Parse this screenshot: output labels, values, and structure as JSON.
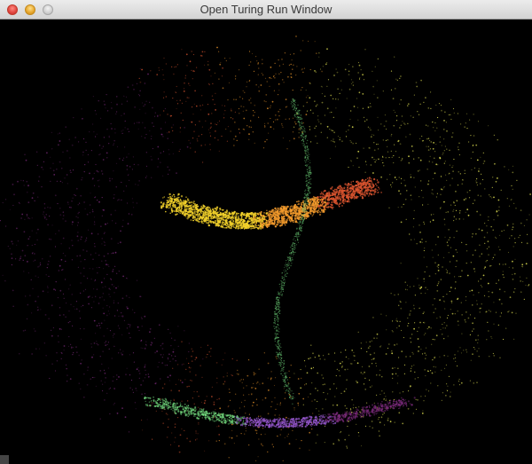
{
  "window": {
    "title": "Open Turing Run Window"
  },
  "visual": {
    "background": "#000000",
    "palette": [
      "#f7f75a",
      "#f2d12b",
      "#f29a2c",
      "#d9542f",
      "#b33a3a",
      "#7a2a7a",
      "#9c5bd6",
      "#6fd37a"
    ]
  }
}
